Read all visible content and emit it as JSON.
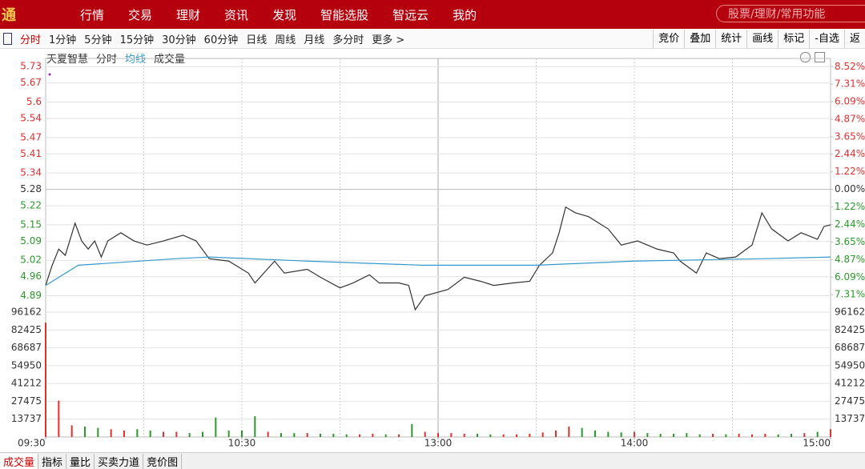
{
  "nav": {
    "logo": "通",
    "items": [
      "行情",
      "交易",
      "理财",
      "资讯",
      "发现",
      "智能选股",
      "智远云",
      "我的"
    ],
    "search": "股票/理财/常用功能"
  },
  "toolbar": {
    "periods": [
      "分时",
      "1分钟",
      "5分钟",
      "15分钟",
      "30分钟",
      "60分钟",
      "日线",
      "周线",
      "月线",
      "多分时",
      "更多 >"
    ],
    "tools": [
      "竞价",
      "叠加",
      "统计",
      "画线",
      "标记",
      "-自选",
      "返"
    ]
  },
  "chart_header": {
    "name": "天夏智慧"
  },
  "bottom_tabs": [
    "成交量",
    "指标",
    "量比",
    "买卖力道",
    "竞价图"
  ],
  "chart_data": [
    {
      "type": "line",
      "xlim": [
        0,
        240
      ],
      "ylim": [
        4.83,
        5.76
      ],
      "yticks": [
        5.73,
        5.67,
        5.6,
        5.54,
        5.47,
        5.41,
        5.34,
        5.28,
        5.22,
        5.15,
        5.09,
        5.02,
        4.96,
        4.89
      ],
      "y2lim": [
        -8.52,
        9.09
      ],
      "y2ticks": [
        {
          "value": 8.52,
          "label": "8.52%"
        },
        {
          "value": 7.31,
          "label": "7.31%"
        },
        {
          "value": 6.09,
          "label": "6.09%"
        },
        {
          "value": 4.87,
          "label": "4.87%"
        },
        {
          "value": 3.65,
          "label": "3.65%"
        },
        {
          "value": 2.44,
          "label": "2.44%"
        },
        {
          "value": 1.22,
          "label": "1.22%"
        },
        {
          "value": 0,
          "label": "0.00%"
        },
        {
          "value": -1.22,
          "label": "1.22%"
        },
        {
          "value": -2.44,
          "label": "2.44%"
        },
        {
          "value": -3.65,
          "label": "3.65%"
        },
        {
          "value": -4.87,
          "label": "4.87%"
        },
        {
          "value": -6.09,
          "label": "6.09%"
        },
        {
          "value": -7.31,
          "label": "7.31%"
        }
      ],
      "xticks": [
        {
          "value": 0,
          "label": "09:30"
        },
        {
          "value": 60,
          "label": "10:30"
        },
        {
          "value": 120,
          "label": "13:00"
        },
        {
          "value": 180,
          "label": "14:00"
        },
        {
          "value": 240,
          "label": "15:00"
        }
      ],
      "xgrid": [
        30,
        60,
        90,
        120,
        150,
        180,
        210
      ],
      "series": [
        {
          "name": "分时",
          "color": "#333333",
          "x": [
            0,
            2,
            4,
            6,
            9,
            11,
            13,
            15,
            17,
            19,
            23,
            27,
            31,
            36,
            42,
            46,
            50,
            56,
            62,
            64,
            70,
            73,
            80,
            84,
            90,
            94,
            99,
            102,
            108,
            111,
            113,
            116,
            123,
            128,
            133,
            137,
            143,
            148,
            151,
            155,
            157,
            159,
            162,
            166,
            172,
            176,
            181,
            187,
            192,
            194,
            199,
            202,
            206,
            211,
            216,
            219,
            222,
            227,
            231,
            236,
            238,
            240
          ],
          "values": [
            4.928,
            5.002,
            5.061,
            5.038,
            5.156,
            5.091,
            5.061,
            5.091,
            5.032,
            5.091,
            5.121,
            5.091,
            5.076,
            5.091,
            5.112,
            5.091,
            5.026,
            5.017,
            4.973,
            4.937,
            5.017,
            4.973,
            4.987,
            4.958,
            4.919,
            4.937,
            4.967,
            4.937,
            4.937,
            4.928,
            4.839,
            4.89,
            4.913,
            4.958,
            4.943,
            4.928,
            4.937,
            4.943,
            5.002,
            5.047,
            5.121,
            5.215,
            5.194,
            5.18,
            5.135,
            5.076,
            5.091,
            5.061,
            5.047,
            5.017,
            4.973,
            5.047,
            5.026,
            5.032,
            5.076,
            5.194,
            5.135,
            5.091,
            5.121,
            5.097,
            5.144,
            5.15
          ]
        },
        {
          "name": "均线",
          "color": "#3399cc",
          "x": [
            0,
            10,
            40,
            50,
            80,
            115,
            150,
            180,
            220,
            240
          ],
          "values": [
            4.928,
            5.002,
            5.026,
            5.032,
            5.017,
            5.002,
            5.002,
            5.017,
            5.026,
            5.032
          ]
        }
      ]
    },
    {
      "type": "bar",
      "name": "成交量",
      "xlim": [
        0,
        240
      ],
      "ylim": [
        0,
        96162
      ],
      "yticks": [
        96162,
        82425,
        68687,
        54950,
        41212,
        27475,
        13737
      ],
      "up_color": "#e03030",
      "down_color": "#2a9a2a",
      "x": [
        0,
        4,
        8,
        12,
        16,
        20,
        24,
        28,
        32,
        36,
        40,
        44,
        48,
        52,
        56,
        60,
        64,
        68,
        72,
        76,
        80,
        84,
        88,
        92,
        96,
        100,
        104,
        108,
        112,
        116,
        120,
        124,
        128,
        132,
        136,
        140,
        144,
        148,
        152,
        156,
        160,
        164,
        168,
        172,
        176,
        180,
        184,
        188,
        192,
        196,
        200,
        204,
        208,
        212,
        216,
        220,
        224,
        228,
        232,
        236,
        240
      ],
      "values": [
        88000,
        28000,
        9000,
        8000,
        7000,
        6000,
        5000,
        6000,
        5000,
        4000,
        4000,
        3000,
        4000,
        15000,
        5000,
        5000,
        16000,
        4000,
        3000,
        3000,
        3000,
        2500,
        2500,
        2000,
        2000,
        2500,
        2000,
        2000,
        10000,
        4000,
        3000,
        3000,
        2500,
        2500,
        2000,
        2000,
        2000,
        2500,
        3500,
        5000,
        8000,
        7000,
        5000,
        4000,
        3500,
        4000,
        3000,
        2500,
        2500,
        3000,
        2000,
        2500,
        2000,
        2500,
        2000,
        2500,
        2000,
        2500,
        3000,
        4000,
        6000
      ]
    }
  ]
}
